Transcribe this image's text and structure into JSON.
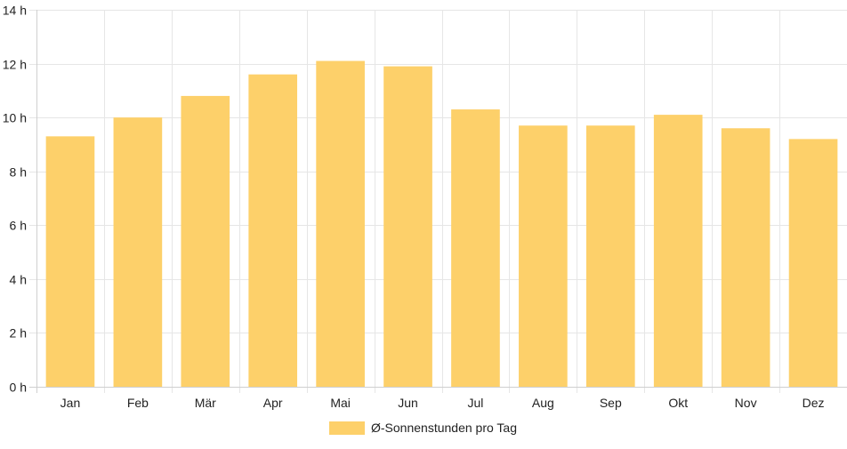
{
  "chart_data": {
    "type": "bar",
    "categories": [
      "Jan",
      "Feb",
      "Mär",
      "Apr",
      "Mai",
      "Jun",
      "Jul",
      "Aug",
      "Sep",
      "Okt",
      "Nov",
      "Dez"
    ],
    "series": [
      {
        "name": "Ø-Sonnenstunden pro Tag",
        "values": [
          9.3,
          10.0,
          10.8,
          11.6,
          12.1,
          11.9,
          10.3,
          9.7,
          9.7,
          10.1,
          9.6,
          9.2
        ],
        "color": "#fdd06a"
      }
    ],
    "ylim": [
      0,
      14
    ],
    "yticks": [
      0,
      2,
      4,
      6,
      8,
      10,
      12,
      14
    ],
    "ytick_suffix": " h",
    "grid": true,
    "legend_position": "bottom-center"
  }
}
